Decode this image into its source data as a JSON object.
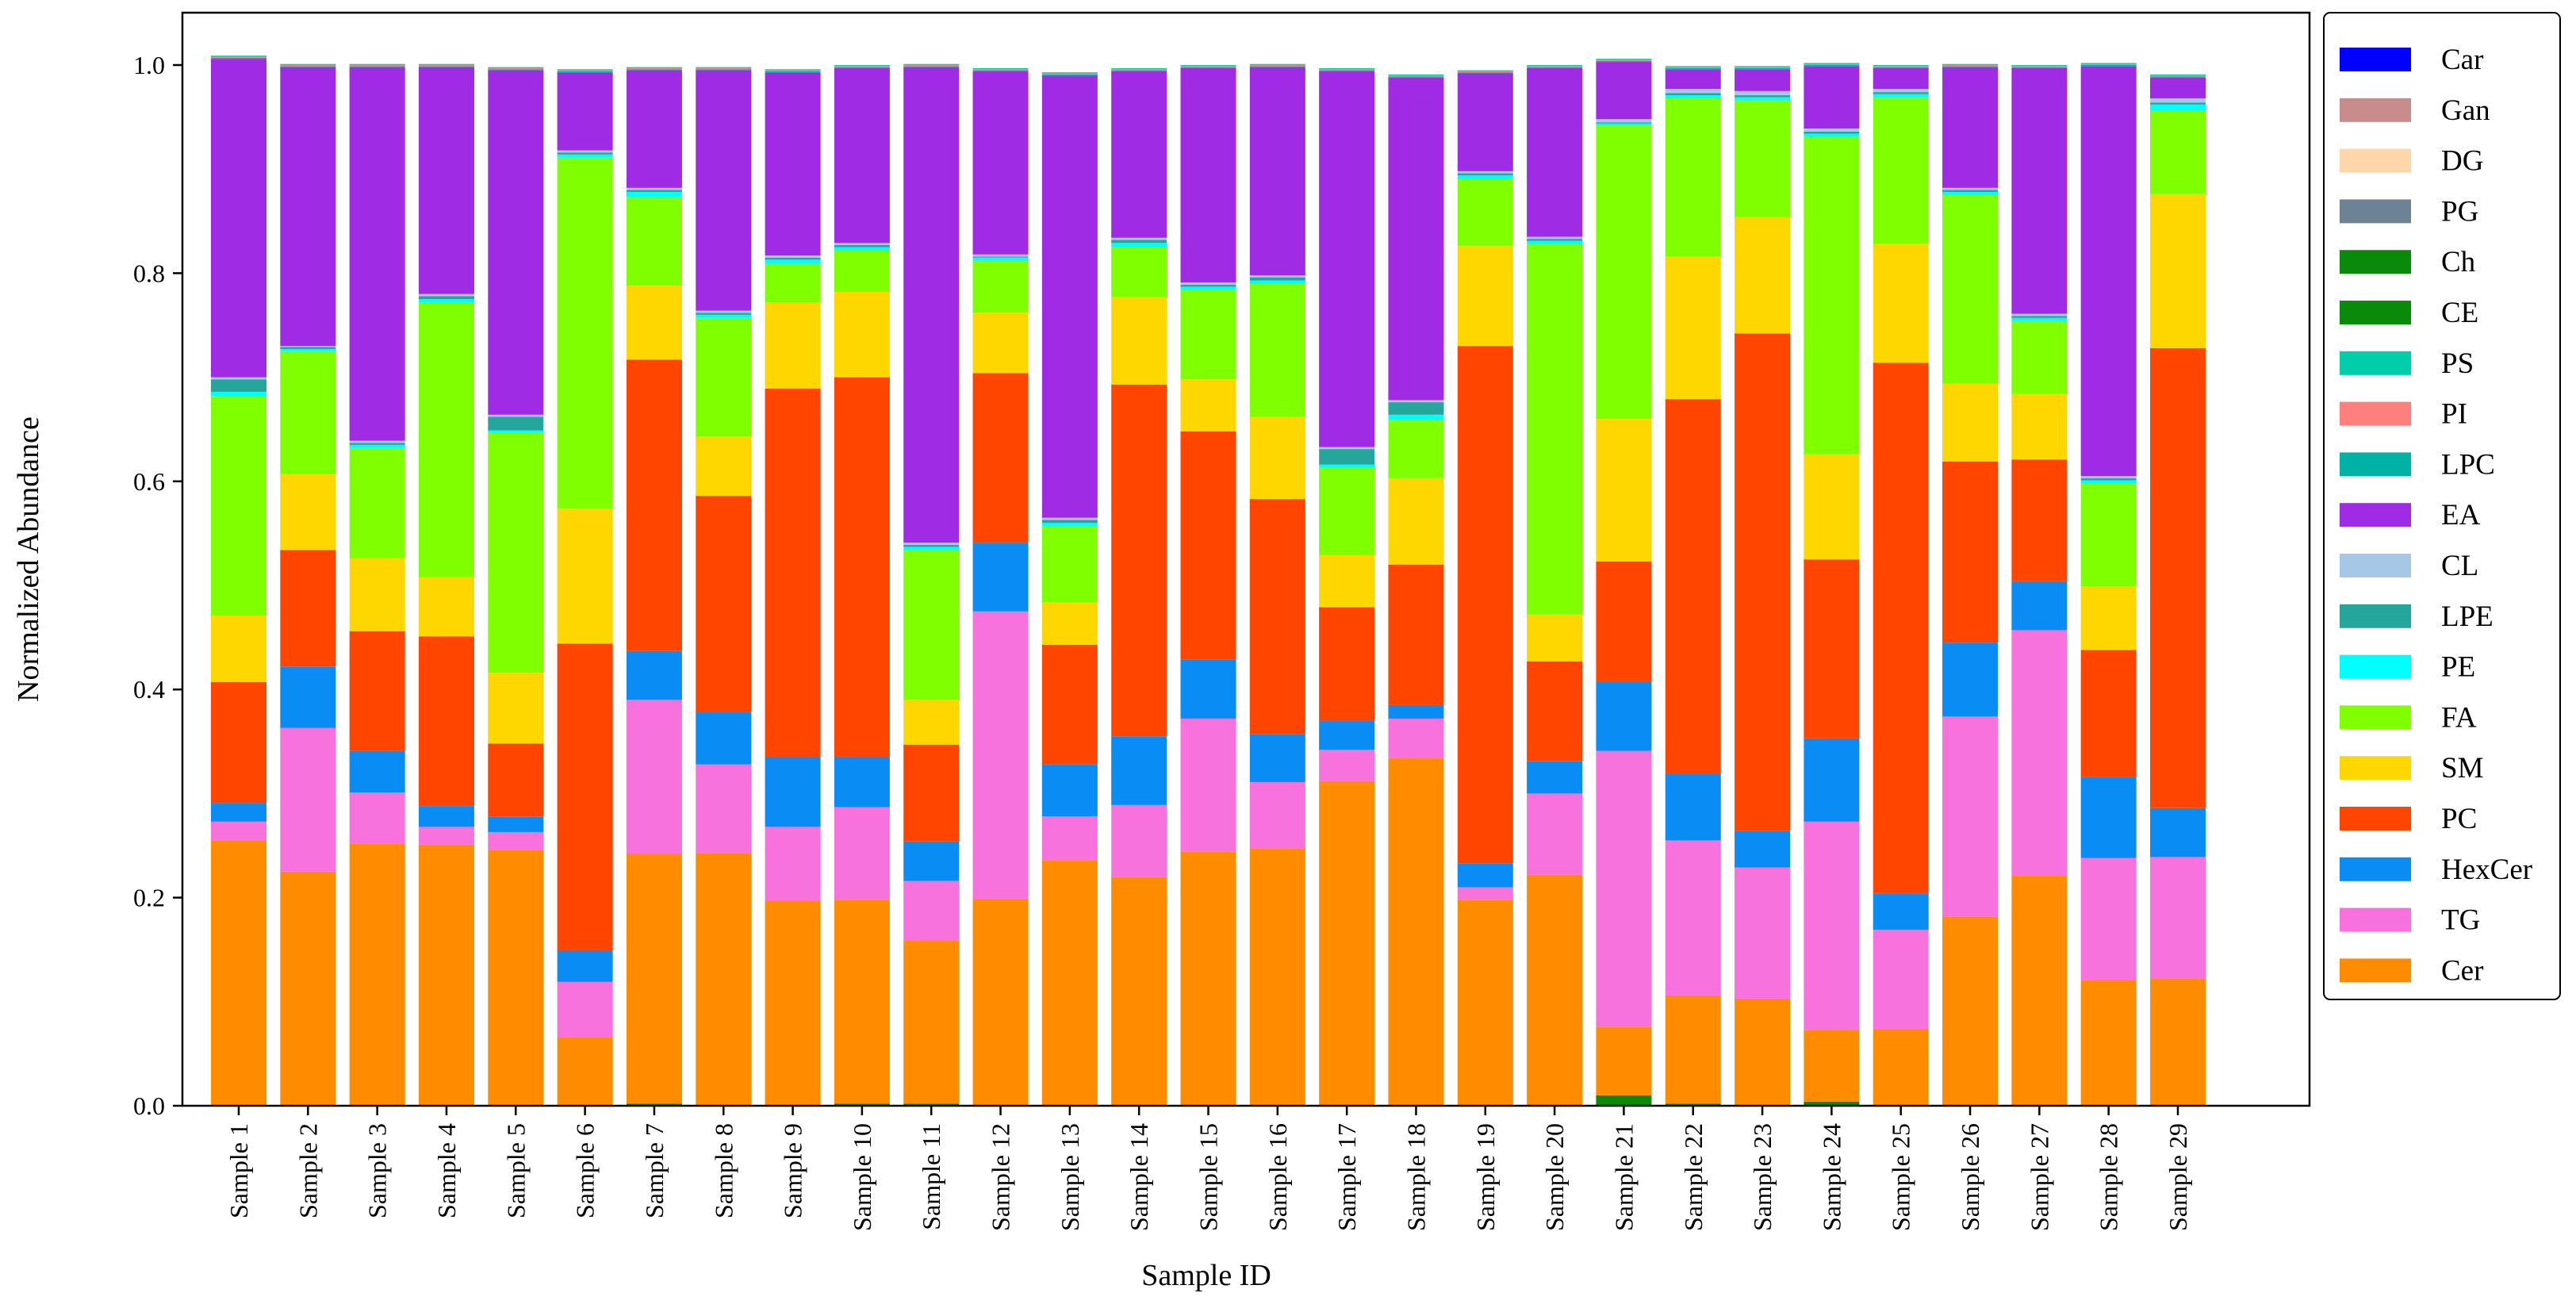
{
  "chart_data": {
    "type": "bar",
    "stacked": true,
    "title": "",
    "xlabel": "Sample ID",
    "ylabel": "Normalized Abundance",
    "ylim": [
      0,
      1.05
    ],
    "yticks": [
      "0.0",
      "0.2",
      "0.4",
      "0.6",
      "0.8",
      "1.0"
    ],
    "legend_position": "right, outside plot",
    "categories": [
      "Sample 1",
      "Sample 2",
      "Sample 3",
      "Sample 4",
      "Sample 5",
      "Sample 6",
      "Sample 7",
      "Sample 8",
      "Sample 9",
      "Sample 10",
      "Sample 11",
      "Sample 12",
      "Sample 13",
      "Sample 14",
      "Sample 15",
      "Sample 16",
      "Sample 17",
      "Sample 18",
      "Sample 19",
      "Sample 20",
      "Sample 21",
      "Sample 22",
      "Sample 23",
      "Sample 24",
      "Sample 25",
      "Sample 26",
      "Sample 27",
      "Sample 28",
      "Sample 29"
    ],
    "stack_order": [
      "Car",
      "Ch",
      "CE",
      "Gan",
      "DG",
      "PG",
      "Cer",
      "TG",
      "HexCer",
      "PC",
      "SM",
      "FA",
      "PE",
      "LPE",
      "CL",
      "EA",
      "LPC",
      "PI",
      "PS"
    ],
    "legend_order": [
      "Car",
      "Gan",
      "DG",
      "PG",
      "Ch",
      "CE",
      "PS",
      "PI",
      "LPC",
      "EA",
      "CL",
      "LPE",
      "PE",
      "FA",
      "SM",
      "PC",
      "HexCer",
      "TG",
      "Cer"
    ],
    "series": [
      {
        "name": "Cer",
        "color": "#FF8C00",
        "values": [
          0.255,
          0.225,
          0.252,
          0.251,
          0.246,
          0.066,
          0.24,
          0.243,
          0.197,
          0.196,
          0.157,
          0.199,
          0.236,
          0.22,
          0.244,
          0.247,
          0.312,
          0.334,
          0.198,
          0.222,
          0.066,
          0.104,
          0.103,
          0.069,
          0.074,
          0.182,
          0.221,
          0.121,
          0.122
        ]
      },
      {
        "name": "TG",
        "color": "#F772DC",
        "values": [
          0.018,
          0.138,
          0.049,
          0.017,
          0.017,
          0.053,
          0.148,
          0.085,
          0.071,
          0.089,
          0.057,
          0.276,
          0.042,
          0.069,
          0.128,
          0.064,
          0.03,
          0.038,
          0.012,
          0.078,
          0.265,
          0.149,
          0.126,
          0.2,
          0.095,
          0.192,
          0.236,
          0.117,
          0.117
        ]
      },
      {
        "name": "HexCer",
        "color": "#0A8CF5",
        "values": [
          0.018,
          0.059,
          0.04,
          0.02,
          0.015,
          0.03,
          0.047,
          0.05,
          0.067,
          0.048,
          0.038,
          0.066,
          0.05,
          0.066,
          0.057,
          0.046,
          0.028,
          0.013,
          0.023,
          0.031,
          0.066,
          0.064,
          0.035,
          0.08,
          0.035,
          0.071,
          0.047,
          0.078,
          0.047
        ]
      },
      {
        "name": "PC",
        "color": "#FF4500",
        "values": [
          0.116,
          0.112,
          0.115,
          0.163,
          0.07,
          0.295,
          0.28,
          0.208,
          0.354,
          0.365,
          0.093,
          0.163,
          0.115,
          0.338,
          0.219,
          0.226,
          0.109,
          0.135,
          0.497,
          0.096,
          0.116,
          0.36,
          0.478,
          0.172,
          0.51,
          0.174,
          0.117,
          0.122,
          0.442
        ]
      },
      {
        "name": "SM",
        "color": "#FFD700",
        "values": [
          0.064,
          0.073,
          0.07,
          0.057,
          0.068,
          0.13,
          0.071,
          0.057,
          0.083,
          0.082,
          0.043,
          0.058,
          0.041,
          0.084,
          0.05,
          0.079,
          0.05,
          0.083,
          0.096,
          0.045,
          0.137,
          0.137,
          0.112,
          0.101,
          0.114,
          0.075,
          0.063,
          0.061,
          0.148
        ]
      },
      {
        "name": "FA",
        "color": "#7FFF00",
        "values": [
          0.211,
          0.118,
          0.106,
          0.264,
          0.231,
          0.337,
          0.085,
          0.114,
          0.037,
          0.04,
          0.144,
          0.05,
          0.073,
          0.048,
          0.086,
          0.128,
          0.084,
          0.056,
          0.065,
          0.356,
          0.282,
          0.152,
          0.112,
          0.305,
          0.141,
          0.181,
          0.07,
          0.099,
          0.08
        ]
      },
      {
        "name": "PE",
        "color": "#00FFFF",
        "values": [
          0.004,
          0.002,
          0.003,
          0.003,
          0.002,
          0.003,
          0.005,
          0.003,
          0.004,
          0.003,
          0.003,
          0.003,
          0.003,
          0.004,
          0.003,
          0.003,
          0.003,
          0.005,
          0.003,
          0.003,
          0.002,
          0.003,
          0.003,
          0.003,
          0.003,
          0.003,
          0.003,
          0.003,
          0.006
        ]
      },
      {
        "name": "LPE",
        "color": "#24A69C",
        "values": [
          0.012,
          0.002,
          0.002,
          0.003,
          0.013,
          0.002,
          0.002,
          0.002,
          0.002,
          0.002,
          0.002,
          0.001,
          0.003,
          0.003,
          0.002,
          0.003,
          0.015,
          0.012,
          0.002,
          0.002,
          0.001,
          0.002,
          0.002,
          0.002,
          0.002,
          0.002,
          0.002,
          0.002,
          0.002
        ]
      },
      {
        "name": "CL",
        "color": "#A6C8E6",
        "values": [
          0.002,
          0.001,
          0.002,
          0.002,
          0.002,
          0.002,
          0.002,
          0.002,
          0.002,
          0.002,
          0.002,
          0.002,
          0.002,
          0.002,
          0.002,
          0.002,
          0.002,
          0.002,
          0.002,
          0.002,
          0.003,
          0.004,
          0.004,
          0.003,
          0.003,
          0.002,
          0.002,
          0.002,
          0.004
        ]
      },
      {
        "name": "EA",
        "color": "#A02BE4",
        "values": [
          0.306,
          0.268,
          0.359,
          0.218,
          0.331,
          0.075,
          0.113,
          0.231,
          0.176,
          0.168,
          0.457,
          0.176,
          0.425,
          0.16,
          0.206,
          0.2,
          0.361,
          0.31,
          0.094,
          0.162,
          0.055,
          0.019,
          0.021,
          0.06,
          0.02,
          0.116,
          0.236,
          0.394,
          0.02
        ]
      },
      {
        "name": "LPC",
        "color": "#00B2A6",
        "values": [
          0.001,
          0.001,
          0.001,
          0.001,
          0.001,
          0.001,
          0.001,
          0.001,
          0.001,
          0.001,
          0.001,
          0.001,
          0.001,
          0.001,
          0.001,
          0.001,
          0.001,
          0.001,
          0.001,
          0.001,
          0.001,
          0.001,
          0.001,
          0.001,
          0.001,
          0.001,
          0.001,
          0.001,
          0.001
        ]
      },
      {
        "name": "PI",
        "color": "#FF7F7F",
        "values": [
          0.001,
          0.001,
          0.001,
          0.001,
          0.001,
          0.001,
          0.001,
          0.001,
          0.001,
          0.001,
          0.001,
          0.001,
          0.001,
          0.001,
          0.001,
          0.001,
          0.001,
          0.001,
          0.001,
          0.001,
          0.001,
          0.001,
          0.001,
          0.001,
          0.001,
          0.001,
          0.001,
          0.001,
          0.001
        ]
      },
      {
        "name": "PS",
        "color": "#00CEAA",
        "values": [
          0.001,
          0.001,
          0.001,
          0.001,
          0.001,
          0.001,
          0.001,
          0.001,
          0.001,
          0.001,
          0.001,
          0.001,
          0.001,
          0.001,
          0.001,
          0.001,
          0.001,
          0.001,
          0.001,
          0.001,
          0.001,
          0.001,
          0.001,
          0.001,
          0.001,
          0.001,
          0.001,
          0.001,
          0.001
        ]
      },
      {
        "name": "CE",
        "color": "#0A8A0A",
        "values": [
          0.0,
          0.0,
          0.0,
          0.0,
          0.0,
          0.0,
          0.0,
          0.0,
          0.0,
          0.0,
          0.0,
          0.0,
          0.0,
          0.0,
          0.0,
          0.0,
          0.0,
          0.0,
          0.0,
          0.0,
          0.0,
          0.0,
          0.0,
          0.0,
          0.0,
          0.0,
          0.0,
          0.0,
          0.0
        ]
      },
      {
        "name": "Ch",
        "color": "#0A8A0A",
        "values": [
          0.0,
          0.0,
          0.0,
          0.0,
          0.0,
          0.0,
          0.002,
          0.0,
          0.0,
          0.002,
          0.002,
          0.0,
          0.0,
          0.0,
          0.0,
          0.0,
          0.0,
          0.0,
          0.0,
          0.0,
          0.01,
          0.002,
          0.0,
          0.004,
          0.0,
          0.0,
          0.0,
          0.0,
          0.0
        ]
      },
      {
        "name": "PG",
        "color": "#6E8296",
        "values": [
          0.0,
          0.0,
          0.0,
          0.0,
          0.0,
          0.0,
          0.0,
          0.0,
          0.0,
          0.0,
          0.0,
          0.0,
          0.0,
          0.0,
          0.0,
          0.0,
          0.0,
          0.0,
          0.0,
          0.0,
          0.0,
          0.0,
          0.0,
          0.0,
          0.0,
          0.0,
          0.0,
          0.0,
          0.0
        ]
      },
      {
        "name": "DG",
        "color": "#FFD7AA",
        "values": [
          0.0,
          0.0,
          0.0,
          0.0,
          0.0,
          0.0,
          0.0,
          0.0,
          0.0,
          0.0,
          0.0,
          0.0,
          0.0,
          0.0,
          0.0,
          0.0,
          0.0,
          0.0,
          0.0,
          0.0,
          0.0,
          0.0,
          0.0,
          0.0,
          0.0,
          0.0,
          0.0,
          0.0,
          0.0
        ]
      },
      {
        "name": "Gan",
        "color": "#C88C8C",
        "values": [
          0.0,
          0.0,
          0.0,
          0.0,
          0.0,
          0.0,
          0.0,
          0.0,
          0.0,
          0.0,
          0.0,
          0.0,
          0.0,
          0.0,
          0.0,
          0.0,
          0.0,
          0.0,
          0.0,
          0.0,
          0.0,
          0.0,
          0.0,
          0.0,
          0.0,
          0.0,
          0.0,
          0.0,
          0.0
        ]
      },
      {
        "name": "Car",
        "color": "#0000FF",
        "values": [
          0.0,
          0.0,
          0.0,
          0.0,
          0.0,
          0.0,
          0.0,
          0.0,
          0.0,
          0.0,
          0.0,
          0.0,
          0.0,
          0.0,
          0.0,
          0.0,
          0.0,
          0.0,
          0.0,
          0.0,
          0.0,
          0.0,
          0.0,
          0.0,
          0.0,
          0.0,
          0.0,
          0.0,
          0.0
        ]
      }
    ]
  }
}
